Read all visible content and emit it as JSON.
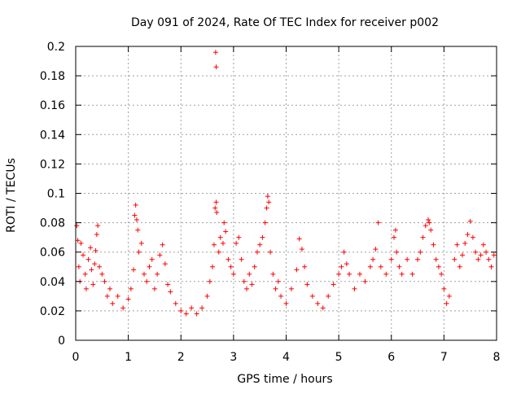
{
  "chart_data": {
    "type": "scatter",
    "title": "Day 091 of 2024, Rate Of TEC Index for receiver p002",
    "xlabel": "GPS time / hours",
    "ylabel": "ROTI / TECUs",
    "xlim": [
      0,
      8
    ],
    "ylim": [
      0,
      0.2
    ],
    "x_ticks": [
      0,
      1,
      2,
      3,
      4,
      5,
      6,
      7,
      8
    ],
    "x_tick_labels": [
      "0",
      "1",
      "2",
      "3",
      "4",
      "5",
      "6",
      "7",
      "8"
    ],
    "y_ticks": [
      0,
      0.02,
      0.04,
      0.06,
      0.08,
      0.1,
      0.12,
      0.14,
      0.16,
      0.18,
      0.2
    ],
    "y_tick_labels": [
      "0",
      "0.02",
      "0.04",
      "0.06",
      "0.08",
      "0.1",
      "0.12",
      "0.14",
      "0.16",
      "0.18",
      "0.2"
    ],
    "grid": true,
    "marker": "+",
    "series_color": "#ff0000",
    "series": [
      {
        "name": "ROTI",
        "points": [
          [
            0.02,
            0.078
          ],
          [
            0.04,
            0.068
          ],
          [
            0.06,
            0.05
          ],
          [
            0.08,
            0.04
          ],
          [
            0.1,
            0.066
          ],
          [
            0.14,
            0.058
          ],
          [
            0.18,
            0.045
          ],
          [
            0.2,
            0.035
          ],
          [
            0.24,
            0.055
          ],
          [
            0.28,
            0.063
          ],
          [
            0.3,
            0.048
          ],
          [
            0.33,
            0.038
          ],
          [
            0.36,
            0.052
          ],
          [
            0.38,
            0.061
          ],
          [
            0.4,
            0.072
          ],
          [
            0.42,
            0.078
          ],
          [
            0.45,
            0.05
          ],
          [
            0.5,
            0.045
          ],
          [
            0.55,
            0.04
          ],
          [
            0.6,
            0.03
          ],
          [
            0.65,
            0.035
          ],
          [
            0.7,
            0.025
          ],
          [
            0.8,
            0.03
          ],
          [
            0.9,
            0.022
          ],
          [
            1.0,
            0.028
          ],
          [
            1.05,
            0.035
          ],
          [
            1.1,
            0.048
          ],
          [
            1.12,
            0.085
          ],
          [
            1.14,
            0.092
          ],
          [
            1.16,
            0.082
          ],
          [
            1.18,
            0.075
          ],
          [
            1.2,
            0.06
          ],
          [
            1.25,
            0.066
          ],
          [
            1.3,
            0.045
          ],
          [
            1.35,
            0.04
          ],
          [
            1.4,
            0.05
          ],
          [
            1.45,
            0.055
          ],
          [
            1.5,
            0.035
          ],
          [
            1.55,
            0.045
          ],
          [
            1.6,
            0.058
          ],
          [
            1.65,
            0.065
          ],
          [
            1.7,
            0.052
          ],
          [
            1.75,
            0.038
          ],
          [
            1.8,
            0.033
          ],
          [
            1.9,
            0.025
          ],
          [
            2.0,
            0.02
          ],
          [
            2.1,
            0.018
          ],
          [
            2.2,
            0.022
          ],
          [
            2.3,
            0.018
          ],
          [
            2.4,
            0.022
          ],
          [
            2.5,
            0.03
          ],
          [
            2.55,
            0.04
          ],
          [
            2.6,
            0.05
          ],
          [
            2.63,
            0.065
          ],
          [
            2.65,
            0.09
          ],
          [
            2.67,
            0.094
          ],
          [
            2.68,
            0.087
          ],
          [
            2.66,
            0.196
          ],
          [
            2.67,
            0.186
          ],
          [
            2.72,
            0.06
          ],
          [
            2.75,
            0.07
          ],
          [
            2.8,
            0.066
          ],
          [
            2.82,
            0.08
          ],
          [
            2.85,
            0.074
          ],
          [
            2.9,
            0.055
          ],
          [
            2.95,
            0.05
          ],
          [
            3.0,
            0.045
          ],
          [
            3.05,
            0.066
          ],
          [
            3.1,
            0.07
          ],
          [
            3.15,
            0.055
          ],
          [
            3.2,
            0.04
          ],
          [
            3.25,
            0.035
          ],
          [
            3.3,
            0.045
          ],
          [
            3.35,
            0.038
          ],
          [
            3.4,
            0.05
          ],
          [
            3.45,
            0.06
          ],
          [
            3.5,
            0.065
          ],
          [
            3.55,
            0.07
          ],
          [
            3.6,
            0.08
          ],
          [
            3.63,
            0.09
          ],
          [
            3.65,
            0.098
          ],
          [
            3.67,
            0.094
          ],
          [
            3.7,
            0.06
          ],
          [
            3.75,
            0.045
          ],
          [
            3.8,
            0.035
          ],
          [
            3.85,
            0.04
          ],
          [
            3.9,
            0.03
          ],
          [
            4.0,
            0.025
          ],
          [
            4.1,
            0.035
          ],
          [
            4.2,
            0.048
          ],
          [
            4.25,
            0.069
          ],
          [
            4.3,
            0.062
          ],
          [
            4.35,
            0.05
          ],
          [
            4.4,
            0.038
          ],
          [
            4.5,
            0.03
          ],
          [
            4.6,
            0.025
          ],
          [
            4.7,
            0.022
          ],
          [
            4.8,
            0.03
          ],
          [
            4.9,
            0.038
          ],
          [
            5.0,
            0.045
          ],
          [
            5.05,
            0.05
          ],
          [
            5.1,
            0.06
          ],
          [
            5.15,
            0.052
          ],
          [
            5.2,
            0.045
          ],
          [
            5.3,
            0.035
          ],
          [
            5.4,
            0.045
          ],
          [
            5.5,
            0.04
          ],
          [
            5.6,
            0.05
          ],
          [
            5.65,
            0.055
          ],
          [
            5.7,
            0.062
          ],
          [
            5.75,
            0.08
          ],
          [
            5.8,
            0.05
          ],
          [
            5.9,
            0.045
          ],
          [
            6.0,
            0.055
          ],
          [
            6.05,
            0.07
          ],
          [
            6.08,
            0.075
          ],
          [
            6.1,
            0.06
          ],
          [
            6.15,
            0.05
          ],
          [
            6.2,
            0.045
          ],
          [
            6.3,
            0.055
          ],
          [
            6.4,
            0.045
          ],
          [
            6.5,
            0.055
          ],
          [
            6.55,
            0.06
          ],
          [
            6.6,
            0.07
          ],
          [
            6.65,
            0.078
          ],
          [
            6.7,
            0.082
          ],
          [
            6.72,
            0.08
          ],
          [
            6.75,
            0.075
          ],
          [
            6.8,
            0.065
          ],
          [
            6.85,
            0.055
          ],
          [
            6.9,
            0.05
          ],
          [
            6.95,
            0.045
          ],
          [
            7.0,
            0.035
          ],
          [
            7.05,
            0.025
          ],
          [
            7.1,
            0.03
          ],
          [
            7.2,
            0.055
          ],
          [
            7.25,
            0.065
          ],
          [
            7.3,
            0.05
          ],
          [
            7.35,
            0.058
          ],
          [
            7.4,
            0.066
          ],
          [
            7.45,
            0.072
          ],
          [
            7.5,
            0.081
          ],
          [
            7.55,
            0.07
          ],
          [
            7.6,
            0.06
          ],
          [
            7.65,
            0.055
          ],
          [
            7.7,
            0.058
          ],
          [
            7.75,
            0.065
          ],
          [
            7.8,
            0.06
          ],
          [
            7.85,
            0.055
          ],
          [
            7.9,
            0.05
          ],
          [
            7.95,
            0.058
          ]
        ]
      }
    ]
  }
}
